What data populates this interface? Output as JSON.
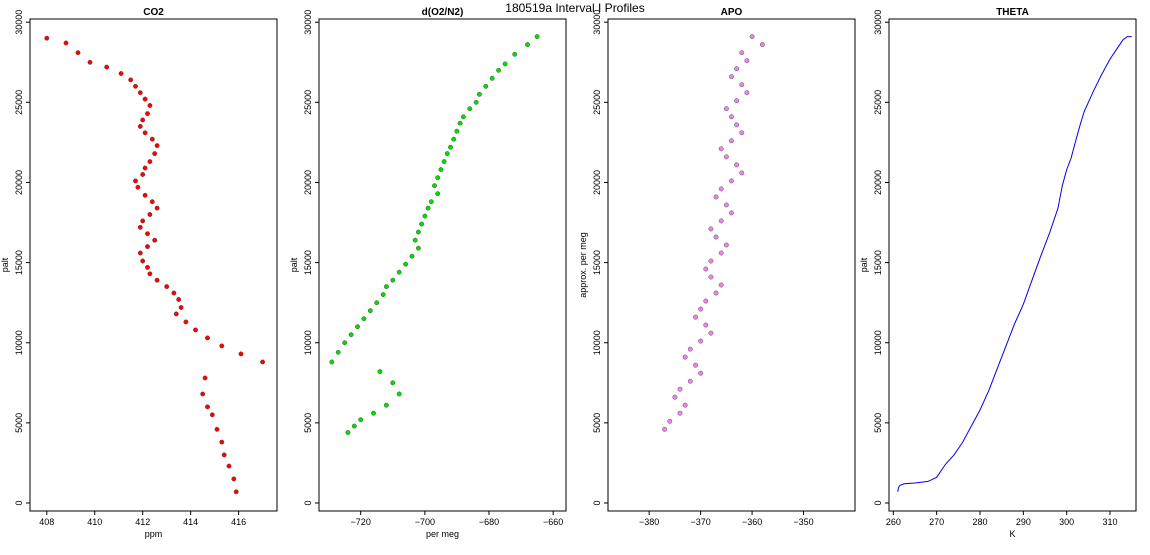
{
  "figure": {
    "title": "180519a   Interval I Profiles"
  },
  "chart_data": [
    {
      "type": "scatter",
      "title": "CO2",
      "xlabel": "ppm",
      "ylabel": "palt",
      "xlim": [
        407.3,
        417.6
      ],
      "ylim": [
        -500,
        30200
      ],
      "xticks": [
        408,
        410,
        412,
        414,
        416
      ],
      "yticks": [
        0,
        5000,
        10000,
        15000,
        20000,
        25000,
        30000
      ],
      "color": "#ff0000",
      "series": [
        {
          "x": [
            408.0,
            408.8,
            409.3,
            409.8,
            410.5,
            411.1,
            411.5,
            411.7,
            411.9,
            412.1,
            412.3,
            412.2,
            412.0,
            411.9,
            412.1,
            412.4,
            412.6,
            412.5,
            412.3,
            412.1,
            412.0,
            411.7,
            411.8,
            412.1,
            412.4,
            412.6,
            412.3,
            412.0,
            411.9,
            412.2,
            412.5,
            412.2,
            411.9,
            412.0,
            412.2,
            412.3,
            412.6,
            413.0,
            413.3,
            413.5,
            413.6,
            413.4,
            413.8,
            414.2,
            414.7,
            415.3,
            416.1,
            417.0,
            414.6,
            414.5,
            414.7,
            414.9,
            415.1,
            415.3,
            415.4,
            415.6,
            415.8,
            415.9
          ],
          "y": [
            29000,
            28700,
            28100,
            27500,
            27200,
            26800,
            26400,
            26000,
            25600,
            25200,
            24800,
            24300,
            23900,
            23500,
            23100,
            22700,
            22300,
            21800,
            21300,
            20900,
            20500,
            20100,
            19700,
            19200,
            18800,
            18400,
            18000,
            17600,
            17200,
            16800,
            16400,
            16000,
            15600,
            15100,
            14700,
            14300,
            13900,
            13500,
            13100,
            12700,
            12200,
            11800,
            11300,
            10800,
            10300,
            9800,
            9300,
            8800,
            7800,
            6800,
            6000,
            5500,
            4600,
            3800,
            3000,
            2300,
            1500,
            700
          ]
        }
      ]
    },
    {
      "type": "scatter",
      "title": "d(O2/N2)",
      "xlabel": "per meg",
      "ylabel": "palt",
      "xlim": [
        -733,
        -656
      ],
      "ylim": [
        -500,
        30200
      ],
      "xticks": [
        -720,
        -700,
        -680,
        -660
      ],
      "yticks": [
        0,
        5000,
        10000,
        15000,
        20000,
        25000,
        30000
      ],
      "color": "#00e000",
      "series": [
        {
          "x": [
            -665,
            -668,
            -672,
            -675,
            -677,
            -679,
            -681,
            -683,
            -684,
            -686,
            -688,
            -689,
            -690,
            -691,
            -692,
            -693,
            -694,
            -695,
            -696,
            -697,
            -696,
            -698,
            -699,
            -700,
            -701,
            -702,
            -703,
            -702,
            -704,
            -706,
            -708,
            -710,
            -712,
            -713,
            -715,
            -717,
            -719,
            -721,
            -723,
            -725,
            -727,
            -729,
            -714,
            -710,
            -708,
            -712,
            -716,
            -720,
            -722,
            -724
          ],
          "y": [
            29100,
            28600,
            28000,
            27400,
            27000,
            26500,
            26000,
            25500,
            25000,
            24600,
            24100,
            23700,
            23200,
            22700,
            22200,
            21800,
            21300,
            20800,
            20300,
            19800,
            19300,
            18800,
            18400,
            17900,
            17400,
            16900,
            16400,
            15900,
            15400,
            14900,
            14400,
            13900,
            13500,
            13000,
            12500,
            12000,
            11500,
            11000,
            10500,
            10000,
            9400,
            8800,
            8200,
            7500,
            6800,
            6100,
            5600,
            5200,
            4800,
            4400
          ]
        }
      ]
    },
    {
      "type": "scatter",
      "title": "APO",
      "xlabel": "",
      "ylabel": "approx. per meg",
      "xlim": [
        -388,
        -340
      ],
      "ylim": [
        -500,
        30200
      ],
      "xticks": [
        -380,
        -370,
        -360,
        -350
      ],
      "yticks": [
        0,
        5000,
        10000,
        15000,
        20000,
        25000,
        30000
      ],
      "color": "#ee82ee",
      "series": [
        {
          "x": [
            -360,
            -358,
            -362,
            -361,
            -363,
            -364,
            -362,
            -361,
            -363,
            -365,
            -364,
            -363,
            -362,
            -364,
            -366,
            -365,
            -363,
            -362,
            -364,
            -366,
            -367,
            -365,
            -364,
            -366,
            -368,
            -367,
            -365,
            -366,
            -368,
            -369,
            -368,
            -366,
            -367,
            -369,
            -370,
            -371,
            -369,
            -368,
            -370,
            -372,
            -373,
            -371,
            -370,
            -372,
            -374,
            -375,
            -373,
            -374,
            -376,
            -377
          ],
          "y": [
            29100,
            28600,
            28100,
            27600,
            27100,
            26600,
            26100,
            25600,
            25100,
            24600,
            24100,
            23600,
            23100,
            22600,
            22100,
            21600,
            21100,
            20600,
            20100,
            19600,
            19100,
            18600,
            18100,
            17600,
            17100,
            16600,
            16100,
            15600,
            15100,
            14600,
            14100,
            13600,
            13100,
            12600,
            12100,
            11600,
            11100,
            10600,
            10100,
            9600,
            9100,
            8600,
            8100,
            7600,
            7100,
            6600,
            6100,
            5600,
            5100,
            4600
          ]
        }
      ]
    },
    {
      "type": "line",
      "title": "THETA",
      "xlabel": "K",
      "ylabel": "palt",
      "xlim": [
        259,
        316
      ],
      "ylim": [
        -500,
        30200
      ],
      "xticks": [
        260,
        270,
        280,
        290,
        300,
        310
      ],
      "yticks": [
        0,
        5000,
        10000,
        15000,
        20000,
        25000,
        30000
      ],
      "color": "#0000ee",
      "series": [
        {
          "x": [
            261,
            261.2,
            261.5,
            262.5,
            265,
            268,
            270,
            271,
            272,
            274,
            276,
            278,
            280,
            282,
            284,
            286,
            288,
            290,
            292,
            294,
            296,
            298,
            299,
            300,
            301,
            302,
            303,
            304,
            306,
            308,
            310,
            312,
            313,
            314,
            315
          ],
          "y": [
            700,
            950,
            1100,
            1200,
            1250,
            1350,
            1600,
            2000,
            2400,
            3000,
            3800,
            4800,
            5800,
            7000,
            8400,
            9800,
            11200,
            12400,
            13900,
            15400,
            16800,
            18400,
            19800,
            20800,
            21500,
            22500,
            23500,
            24400,
            25600,
            26700,
            27700,
            28500,
            28900,
            29100,
            29100
          ]
        }
      ]
    }
  ]
}
